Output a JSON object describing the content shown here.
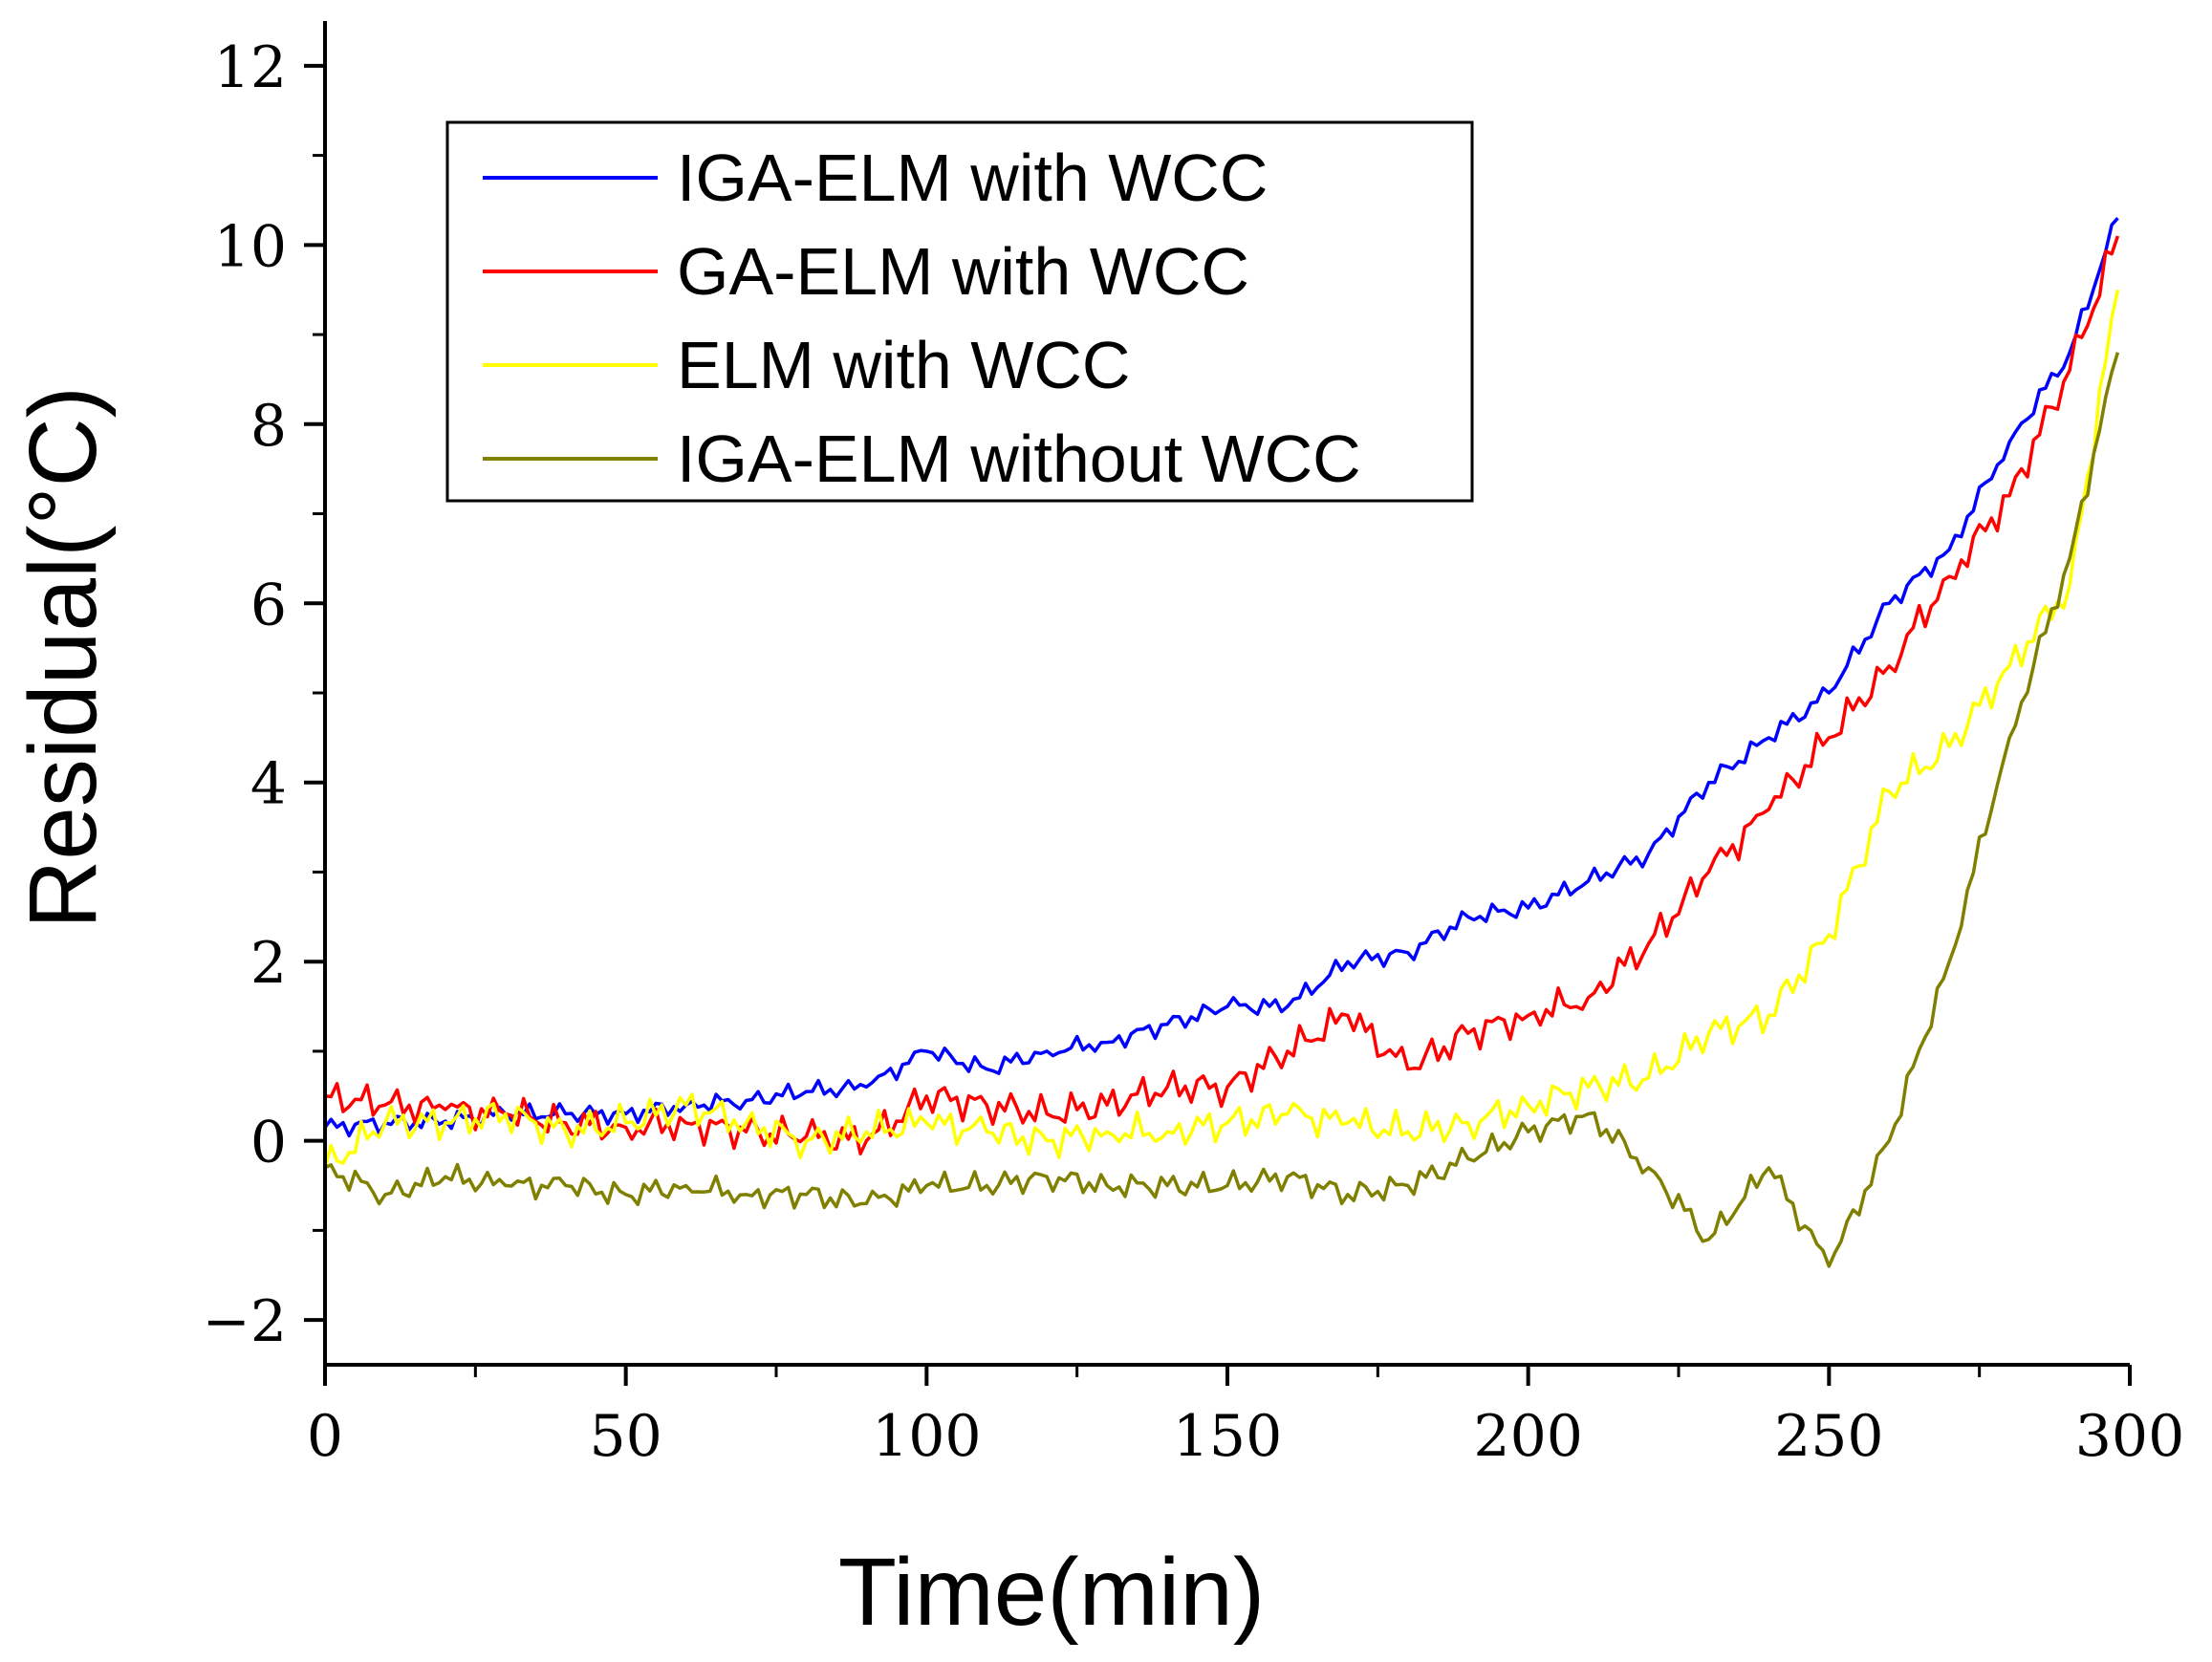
{
  "chart_data": {
    "type": "line",
    "title": "",
    "xlabel": "Time(min)",
    "ylabel": "Residual(°C)",
    "xlim": [
      0,
      300
    ],
    "ylim": [
      -2.5,
      12.5
    ],
    "xticks": [
      0,
      50,
      100,
      150,
      200,
      250,
      300
    ],
    "xtick_labels": [
      "0",
      "50",
      "100",
      "150",
      "200",
      "250",
      "300"
    ],
    "yticks": [
      -2,
      0,
      2,
      4,
      6,
      8,
      10,
      12
    ],
    "ytick_labels": [
      "−2",
      "0",
      "2",
      "4",
      "6",
      "8",
      "10",
      "12"
    ],
    "grid": false,
    "legend_position": "top-left",
    "x": [
      0,
      10,
      20,
      30,
      40,
      50,
      60,
      70,
      80,
      90,
      100,
      110,
      120,
      130,
      140,
      150,
      160,
      170,
      180,
      190,
      200,
      210,
      220,
      230,
      240,
      250,
      260,
      270,
      280,
      290,
      298
    ],
    "series": [
      {
        "name": "IGA-ELM with WCC",
        "color": "#0000ff",
        "values": [
          0.15,
          0.2,
          0.22,
          0.3,
          0.3,
          0.3,
          0.4,
          0.45,
          0.55,
          0.6,
          1.0,
          0.8,
          1.0,
          1.1,
          1.3,
          1.5,
          1.5,
          2.0,
          2.1,
          2.5,
          2.6,
          2.9,
          3.2,
          4.0,
          4.5,
          5.0,
          6.0,
          6.6,
          7.8,
          8.8,
          10.3
        ]
      },
      {
        "name": "GA-ELM with WCC",
        "color": "#ff0000",
        "values": [
          0.5,
          0.4,
          0.35,
          0.3,
          0.2,
          0.15,
          0.2,
          0.1,
          0.05,
          0.0,
          0.5,
          0.4,
          0.3,
          0.4,
          0.6,
          0.6,
          1.0,
          1.4,
          0.8,
          1.2,
          1.4,
          1.6,
          2.2,
          3.0,
          3.7,
          4.5,
          5.3,
          6.3,
          7.2,
          8.6,
          10.1
        ]
      },
      {
        "name": "ELM with WCC",
        "color": "#ffff00",
        "values": [
          -0.3,
          0.2,
          0.2,
          0.3,
          0.1,
          0.2,
          0.4,
          0.2,
          0.0,
          0.1,
          0.2,
          0.1,
          0.0,
          0.1,
          0.1,
          0.2,
          0.3,
          0.2,
          0.1,
          0.2,
          0.4,
          0.6,
          0.7,
          1.2,
          1.4,
          2.3,
          3.9,
          4.4,
          5.3,
          6.2,
          9.5
        ]
      },
      {
        "name": "IGA-ELM without WCC",
        "color": "#808000",
        "values": [
          -0.3,
          -0.6,
          -0.4,
          -0.5,
          -0.5,
          -0.6,
          -0.5,
          -0.6,
          -0.6,
          -0.7,
          -0.5,
          -0.5,
          -0.4,
          -0.5,
          -0.5,
          -0.5,
          -0.4,
          -0.6,
          -0.5,
          -0.2,
          0.1,
          0.3,
          -0.3,
          -1.1,
          -0.3,
          -1.4,
          0.0,
          2.0,
          4.5,
          6.5,
          8.8
        ]
      }
    ]
  }
}
